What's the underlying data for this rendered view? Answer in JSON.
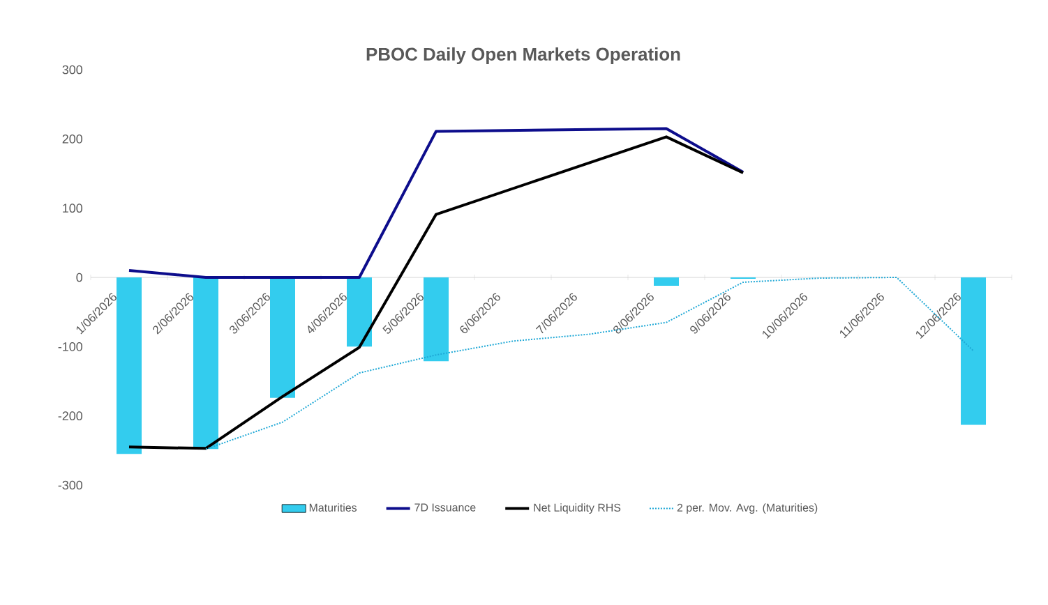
{
  "chart_data": {
    "type": "bar",
    "title": "PBOC Daily Open Markets Operation",
    "categories": [
      "1/06/2026",
      "2/06/2026",
      "3/06/2026",
      "4/06/2026",
      "5/06/2026",
      "6/06/2026",
      "7/06/2026",
      "8/06/2026",
      "9/06/2026",
      "10/06/2026",
      "11/06/2026",
      "12/06/2026"
    ],
    "series": [
      {
        "name": "Maturities",
        "color": "#33ccee",
        "values": [
          -255,
          -248,
          -174,
          -100,
          -121,
          null,
          null,
          -12,
          -2,
          null,
          null,
          -213
        ]
      },
      {
        "name": "7D Issuance",
        "type": "line",
        "color": "#0d0d8c",
        "line_style": "solid",
        "values": [
          10,
          0,
          0,
          0,
          211,
          null,
          null,
          215,
          152,
          null,
          null,
          null
        ]
      },
      {
        "name": "Net Liquidity RHS",
        "type": "line",
        "color": "#000000",
        "line_style": "solid",
        "values": [
          -245,
          -247,
          -172,
          -101,
          91,
          null,
          null,
          203,
          151,
          null,
          null,
          null
        ]
      },
      {
        "name": "2 per. Mov. Avg. (Maturities)",
        "type": "line",
        "color": "#1fa8d6",
        "line_style": "dotted",
        "values": [
          null,
          -248,
          -209,
          -138,
          -112,
          -92,
          -82,
          -65,
          -7,
          -1,
          0,
          -106
        ]
      }
    ],
    "ylim": [
      -300,
      300
    ],
    "yticks": [
      -300,
      -200,
      -100,
      0,
      100,
      200,
      300
    ],
    "grid": false,
    "legend": "bottom"
  }
}
